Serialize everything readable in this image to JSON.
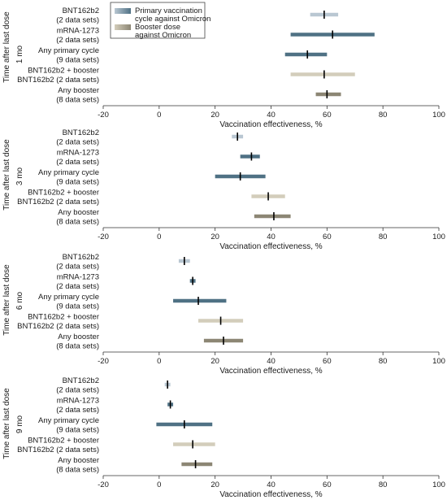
{
  "y_axis_label": "Time after last dose",
  "legend": {
    "items": [
      {
        "label_lines": [
          "Primary vaccination",
          "cycle against Omicron"
        ],
        "color": "#4f7184",
        "light": "#b9c7d2"
      },
      {
        "label_lines": [
          "Booster dose",
          "against Omicron"
        ],
        "color": "#8c8674",
        "light": "#d3cdbb"
      }
    ]
  },
  "chart_data": [
    {
      "type": "forest",
      "panel_label": "1 mo",
      "xlabel": "Vaccination effectiveness, %",
      "xlim": [
        -20,
        100
      ],
      "xticks": [
        -20,
        0,
        20,
        40,
        60,
        80,
        100
      ],
      "rows": [
        {
          "label_lines": [
            "BNT162b2",
            "(2 data sets)"
          ],
          "estimate": 59,
          "ci": [
            54,
            64
          ],
          "group": "primary",
          "shade": "light"
        },
        {
          "label_lines": [
            "mRNA-1273",
            "(2 data sets)"
          ],
          "estimate": 62,
          "ci": [
            47,
            77
          ],
          "group": "primary",
          "shade": "dark"
        },
        {
          "label_lines": [
            "Any primary cycle",
            "(9 data sets)"
          ],
          "estimate": 53,
          "ci": [
            45,
            60
          ],
          "group": "primary",
          "shade": "dark"
        },
        {
          "label_lines": [
            "BNT162b2 + booster",
            "BNT162b2 (2 data sets)"
          ],
          "estimate": 59,
          "ci": [
            47,
            70
          ],
          "group": "booster",
          "shade": "light"
        },
        {
          "label_lines": [
            "Any booster",
            "(8 data sets)"
          ],
          "estimate": 60,
          "ci": [
            56,
            65
          ],
          "group": "booster",
          "shade": "dark"
        }
      ]
    },
    {
      "type": "forest",
      "panel_label": "3 mo",
      "xlabel": "Vaccination effectiveness, %",
      "xlim": [
        -20,
        100
      ],
      "xticks": [
        -20,
        0,
        20,
        40,
        60,
        80,
        100
      ],
      "rows": [
        {
          "label_lines": [
            "BNT162b2",
            "(2 data sets)"
          ],
          "estimate": 28,
          "ci": [
            26,
            30
          ],
          "group": "primary",
          "shade": "light"
        },
        {
          "label_lines": [
            "mRNA-1273",
            "(2 data sets)"
          ],
          "estimate": 33,
          "ci": [
            29,
            36
          ],
          "group": "primary",
          "shade": "dark"
        },
        {
          "label_lines": [
            "Any primary cycle",
            "(9 data sets)"
          ],
          "estimate": 29,
          "ci": [
            20,
            38
          ],
          "group": "primary",
          "shade": "dark"
        },
        {
          "label_lines": [
            "BNT162b2 + booster",
            "BNT162b2 (2 data sets)"
          ],
          "estimate": 39,
          "ci": [
            33,
            45
          ],
          "group": "booster",
          "shade": "light"
        },
        {
          "label_lines": [
            "Any booster",
            "(8 data sets)"
          ],
          "estimate": 41,
          "ci": [
            34,
            47
          ],
          "group": "booster",
          "shade": "dark"
        }
      ]
    },
    {
      "type": "forest",
      "panel_label": "6 mo",
      "xlabel": "Vaccination effectiveness, %",
      "xlim": [
        -20,
        100
      ],
      "xticks": [
        -20,
        0,
        20,
        40,
        60,
        80,
        100
      ],
      "rows": [
        {
          "label_lines": [
            "BNT162b2",
            "(2 data sets)"
          ],
          "estimate": 9,
          "ci": [
            7,
            11
          ],
          "group": "primary",
          "shade": "light"
        },
        {
          "label_lines": [
            "mRNA-1273",
            "(2 data sets)"
          ],
          "estimate": 12,
          "ci": [
            11,
            13
          ],
          "group": "primary",
          "shade": "dark"
        },
        {
          "label_lines": [
            "Any primary cycle",
            "(9 data sets)"
          ],
          "estimate": 14,
          "ci": [
            5,
            24
          ],
          "group": "primary",
          "shade": "dark"
        },
        {
          "label_lines": [
            "BNT162b2 + booster",
            "BNT162b2 (2 data sets)"
          ],
          "estimate": 22,
          "ci": [
            14,
            30
          ],
          "group": "booster",
          "shade": "light"
        },
        {
          "label_lines": [
            "Any booster",
            "(8 data sets)"
          ],
          "estimate": 23,
          "ci": [
            16,
            30
          ],
          "group": "booster",
          "shade": "dark"
        }
      ]
    },
    {
      "type": "forest",
      "panel_label": "9 mo",
      "xlabel": "Vaccination effectiveness, %",
      "xlim": [
        -20,
        100
      ],
      "xticks": [
        -20,
        0,
        20,
        40,
        60,
        80,
        100
      ],
      "rows": [
        {
          "label_lines": [
            "BNT162b2",
            "(2 data sets)"
          ],
          "estimate": 3,
          "ci": [
            2,
            4
          ],
          "group": "primary",
          "shade": "light"
        },
        {
          "label_lines": [
            "mRNA-1273",
            "(2 data sets)"
          ],
          "estimate": 4,
          "ci": [
            3,
            5
          ],
          "group": "primary",
          "shade": "dark"
        },
        {
          "label_lines": [
            "Any primary cycle",
            "(9 data sets)"
          ],
          "estimate": 9,
          "ci": [
            -1,
            19
          ],
          "group": "primary",
          "shade": "dark"
        },
        {
          "label_lines": [
            "BNT162b2 + booster",
            "BNT162b2 (2 data sets)"
          ],
          "estimate": 12,
          "ci": [
            5,
            20
          ],
          "group": "booster",
          "shade": "light"
        },
        {
          "label_lines": [
            "Any booster",
            "(8 data sets)"
          ],
          "estimate": 13,
          "ci": [
            8,
            19
          ],
          "group": "booster",
          "shade": "dark"
        }
      ]
    }
  ]
}
